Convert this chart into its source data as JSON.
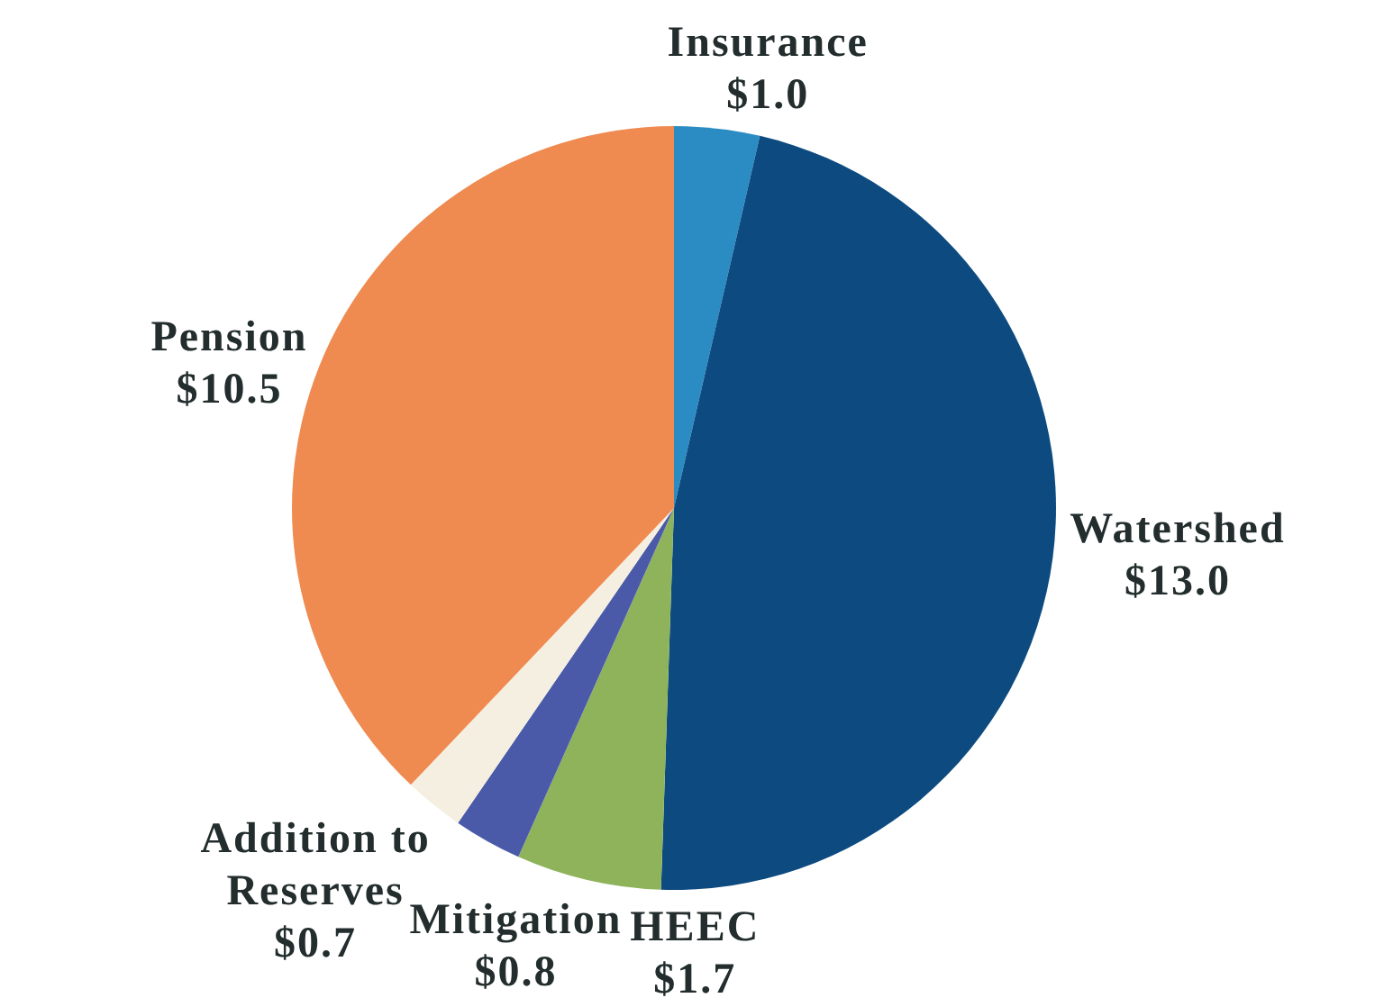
{
  "chart_data": {
    "type": "pie",
    "categories": [
      "Insurance",
      "Watershed",
      "HEEC",
      "Mitigation",
      "Addition to Reserves",
      "Pension"
    ],
    "values": [
      1.0,
      13.0,
      1.7,
      0.8,
      0.7,
      10.5
    ],
    "colors": [
      "#2b8cc4",
      "#0d4a7f",
      "#8fb35b",
      "#4a5aa8",
      "#f4efe0",
      "#ef8a50"
    ],
    "value_labels": [
      "$1.0",
      "$13.0",
      "$1.7",
      "$0.8",
      "$0.7",
      "$10.5"
    ]
  }
}
